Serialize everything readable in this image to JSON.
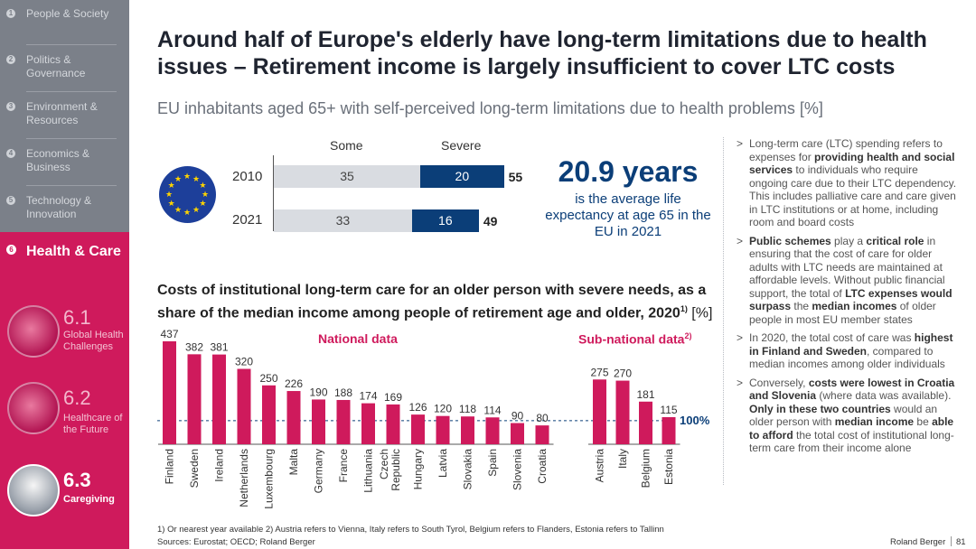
{
  "sidebar": {
    "items": [
      {
        "num": "1",
        "label": "People & Society"
      },
      {
        "num": "2",
        "label": "Politics & Governance"
      },
      {
        "num": "3",
        "label": "Environment & Resources"
      },
      {
        "num": "4",
        "label": "Economics & Business"
      },
      {
        "num": "5",
        "label": "Technology & Innovation"
      }
    ],
    "active": {
      "num": "6",
      "label": "Health & Care"
    },
    "subitems": [
      {
        "num": "6.1",
        "label": "Global Health Challenges"
      },
      {
        "num": "6.2",
        "label": "Healthcare of the Future"
      },
      {
        "num": "6.3",
        "label": "Caregiving"
      }
    ]
  },
  "title": "Around half of Europe's elderly have long-term limitations due to health issues – Retirement income is largely insufficient to cover LTC costs",
  "subtitle": "EU inhabitants aged 65+ with self-perceived long-term limitations due to health problems [%]",
  "limitations": {
    "header_some": "Some",
    "header_severe": "Severe",
    "rows": [
      {
        "year": "2010",
        "some": 35,
        "severe": 20,
        "total": 55
      },
      {
        "year": "2021",
        "some": 33,
        "severe": 16,
        "total": 49
      }
    ]
  },
  "life_expectancy": {
    "value": "20.9 years",
    "text": "is the average life expectancy at age 65 in the EU in 2021"
  },
  "chart_data": {
    "type": "bar",
    "title": "Costs of institutional long-term care for an older person with severe needs, as a share of the median income among people of retirement age and older, 2020",
    "title_sup": "1)",
    "title_unit": "[%]",
    "groups": [
      {
        "name": "National data",
        "categories": [
          "Finland",
          "Sweden",
          "Ireland",
          "Netherlands",
          "Luxembourg",
          "Malta",
          "Germany",
          "France",
          "Lithuania",
          "Czech Republic",
          "Hungary",
          "Latvia",
          "Slovakia",
          "Spain",
          "Slovenia",
          "Croatia"
        ],
        "values": [
          437,
          382,
          381,
          320,
          250,
          226,
          190,
          188,
          174,
          169,
          126,
          120,
          118,
          114,
          90,
          80
        ]
      },
      {
        "name": "Sub-national data",
        "name_sup": "2)",
        "categories": [
          "Austria",
          "Italy",
          "Belgium",
          "Estonia"
        ],
        "values": [
          275,
          270,
          181,
          115
        ]
      }
    ],
    "reference_line": {
      "value": 100,
      "label": "100%"
    },
    "ylim": [
      0,
      450
    ]
  },
  "bullets": [
    [
      {
        "t": "Long-term care (LTC) spending refers to expenses for "
      },
      {
        "t": "providing health and social services",
        "b": true
      },
      {
        "t": " to individuals who require ongoing care due to their LTC dependency. This includes palliative care and care given in LTC institutions or at home, including room and board costs"
      }
    ],
    [
      {
        "t": "Public schemes",
        "b": true
      },
      {
        "t": " play a "
      },
      {
        "t": "critical role",
        "b": true
      },
      {
        "t": " in ensuring that the cost of care for older adults with LTC needs are maintained at affordable levels. Without public financial support, the total of "
      },
      {
        "t": "LTC expenses would surpass",
        "b": true
      },
      {
        "t": " the "
      },
      {
        "t": "median incomes",
        "b": true
      },
      {
        "t": " of older people in most EU member states"
      }
    ],
    [
      {
        "t": "In 2020, the total cost of care was "
      },
      {
        "t": "highest in Finland and Sweden",
        "b": true
      },
      {
        "t": ", compared to median incomes among older individuals"
      }
    ],
    [
      {
        "t": "Conversely, "
      },
      {
        "t": "costs were lowest in Croatia and Slovenia",
        "b": true
      },
      {
        "t": " (where data was available). "
      },
      {
        "t": "Only in these two countries",
        "b": true
      },
      {
        "t": " would an older person with "
      },
      {
        "t": "median income",
        "b": true
      },
      {
        "t": " be "
      },
      {
        "t": "able to afford",
        "b": true
      },
      {
        "t": " the total cost of institutional long-term care from their income alone"
      }
    ]
  ],
  "footnote": "1) Or nearest year available  2) Austria refers to Vienna, Italy refers to South Tyrol, Belgium refers to Flanders, Estonia refers to Tallinn",
  "sources": "Sources: Eurostat; OECD; Roland Berger",
  "brand": "Roland Berger",
  "page_number": "81",
  "colors": {
    "accent": "#cf1a5c",
    "navy": "#0b3e78",
    "grey_bar": "#d9dce1",
    "sidebar": "#7b8089"
  }
}
